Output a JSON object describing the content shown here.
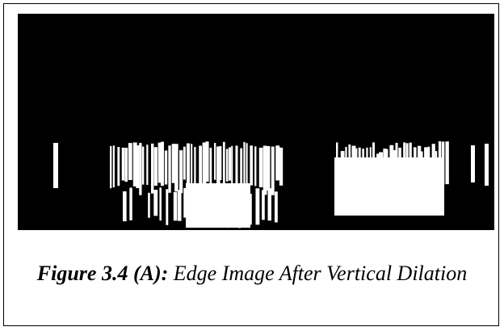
{
  "figure": {
    "label": "Figure 3.4 (A):",
    "caption": "Edge Image After Vertical Dilation"
  }
}
